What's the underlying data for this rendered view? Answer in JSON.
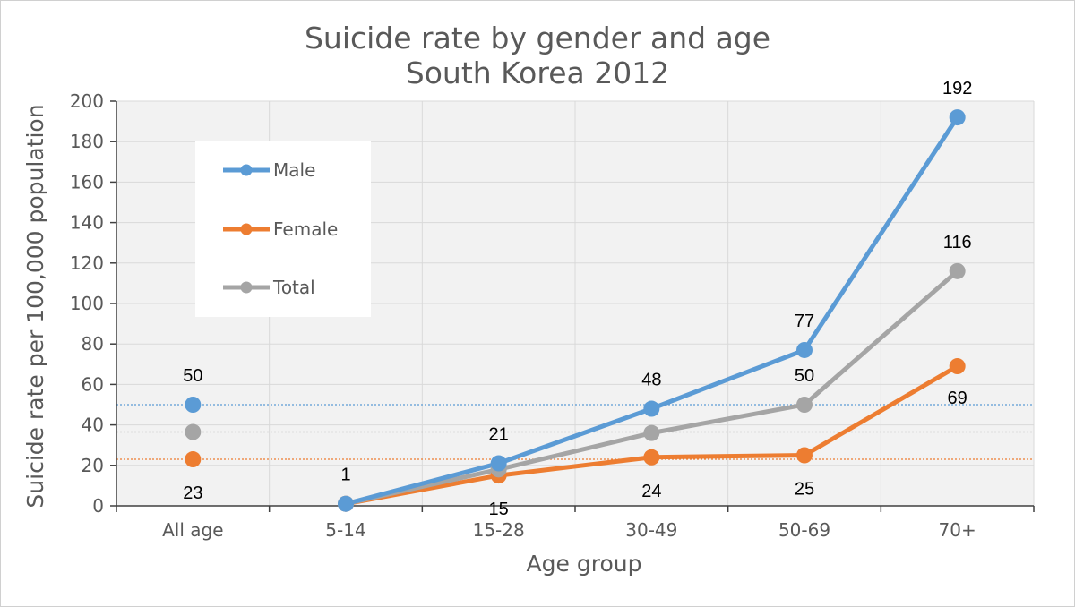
{
  "chart_data": {
    "type": "line",
    "title": [
      "Suicide rate by gender and age",
      "South Korea 2012"
    ],
    "xlabel": "Age group",
    "ylabel": "Suicide rate per 100,000 population",
    "ylim": [
      0,
      200
    ],
    "yticks": [
      0,
      20,
      40,
      60,
      80,
      100,
      120,
      140,
      160,
      180,
      200
    ],
    "categories": [
      "All age",
      "5-14",
      "15-28",
      "30-49",
      "50-69",
      "70+"
    ],
    "grid": true,
    "legend_position": "top-left",
    "series": [
      {
        "name": "Male",
        "color": "#5b9bd5",
        "all_age": 50,
        "values": [
          null,
          1,
          21,
          48,
          77,
          192
        ],
        "labels": [
          "50",
          "",
          "21",
          "48",
          "77",
          "192"
        ],
        "label_pos": [
          "above",
          "",
          "above",
          "above",
          "above",
          "above"
        ]
      },
      {
        "name": "Female",
        "color": "#ed7d31",
        "all_age": 23,
        "values": [
          null,
          1,
          15,
          24,
          25,
          69
        ],
        "labels": [
          "23",
          "",
          "15",
          "24",
          "25",
          "69"
        ],
        "label_pos": [
          "below",
          "",
          "below",
          "below",
          "below",
          "below"
        ]
      },
      {
        "name": "Total",
        "color": "#a5a5a5",
        "all_age": 36.5,
        "values": [
          null,
          1,
          18,
          36,
          50,
          116
        ],
        "labels": [
          "",
          "1",
          "",
          "",
          "50",
          "116"
        ],
        "label_pos": [
          "",
          "above",
          "",
          "",
          "above",
          "above"
        ]
      }
    ]
  }
}
